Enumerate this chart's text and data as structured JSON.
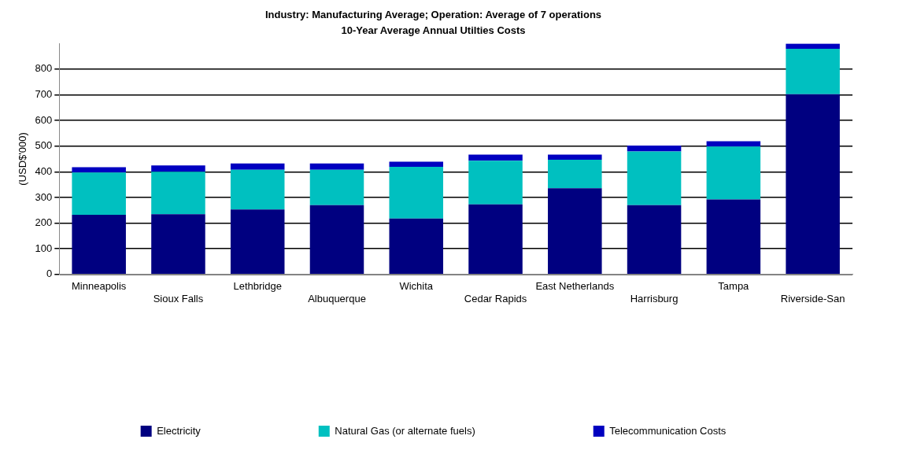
{
  "chart_data": {
    "type": "bar",
    "title": "Industry: Manufacturing Average; Operation: Average of 7 operations",
    "subtitle": "10-Year Average Annual Utilties Costs",
    "ylabel": "(USD$'000)",
    "categories": [
      "Minneapolis",
      "Sioux Falls",
      "Lethbridge",
      "Albuquerque",
      "Wichita",
      "Cedar Rapids",
      "East Netherlands",
      "Harrisburg",
      "Tampa",
      "Riverside-San"
    ],
    "stacked": true,
    "series": [
      {
        "name": "Electricity",
        "color": "#000080",
        "values": [
          232,
          235,
          253,
          270,
          218,
          273,
          336,
          270,
          292,
          702
        ]
      },
      {
        "name": "Natural Gas (or alternate fuels)",
        "color": "#00c0c0",
        "values": [
          165,
          165,
          155,
          138,
          201,
          170,
          111,
          209,
          206,
          177
        ]
      },
      {
        "name": "Telecommunication Costs",
        "color": "#0000c0",
        "values": [
          21,
          25,
          24,
          24,
          20,
          24,
          20,
          23,
          21,
          20
        ]
      }
    ],
    "ylim": [
      0,
      900
    ],
    "yticks": [
      0,
      100,
      200,
      300,
      400,
      500,
      600,
      700,
      800
    ],
    "grid": "y",
    "legend": "bottom"
  }
}
